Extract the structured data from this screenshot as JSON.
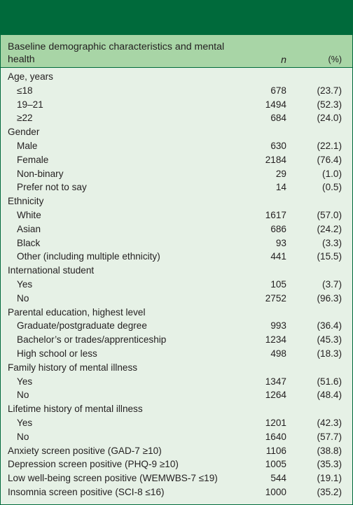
{
  "header": {
    "label": "Baseline demographic characteristics and mental health",
    "n": "n",
    "pct": "(%)"
  },
  "rows": [
    {
      "label": "Age, years",
      "n": "",
      "pct": "",
      "indent": false
    },
    {
      "label": "≤18",
      "n": "678",
      "pct": "(23.7)",
      "indent": true
    },
    {
      "label": "19–21",
      "n": "1494",
      "pct": "(52.3)",
      "indent": true
    },
    {
      "label": "≥22",
      "n": "684",
      "pct": "(24.0)",
      "indent": true
    },
    {
      "label": "Gender",
      "n": "",
      "pct": "",
      "indent": false
    },
    {
      "label": "Male",
      "n": "630",
      "pct": "(22.1)",
      "indent": true
    },
    {
      "label": "Female",
      "n": "2184",
      "pct": "(76.4)",
      "indent": true
    },
    {
      "label": "Non-binary",
      "n": "29",
      "pct": "(1.0)",
      "indent": true
    },
    {
      "label": "Prefer not to say",
      "n": "14",
      "pct": "(0.5)",
      "indent": true
    },
    {
      "label": "Ethnicity",
      "n": "",
      "pct": "",
      "indent": false
    },
    {
      "label": "White",
      "n": "1617",
      "pct": "(57.0)",
      "indent": true
    },
    {
      "label": "Asian",
      "n": "686",
      "pct": "(24.2)",
      "indent": true
    },
    {
      "label": "Black",
      "n": "93",
      "pct": "(3.3)",
      "indent": true
    },
    {
      "label": "Other (including multiple ethnicity)",
      "n": "441",
      "pct": "(15.5)",
      "indent": true
    },
    {
      "label": "International student",
      "n": "",
      "pct": "",
      "indent": false
    },
    {
      "label": "Yes",
      "n": "105",
      "pct": "(3.7)",
      "indent": true
    },
    {
      "label": "No",
      "n": "2752",
      "pct": "(96.3)",
      "indent": true
    },
    {
      "label": "Parental education, highest level",
      "n": "",
      "pct": "",
      "indent": false
    },
    {
      "label": "Graduate/postgraduate degree",
      "n": "993",
      "pct": "(36.4)",
      "indent": true
    },
    {
      "label": "Bachelor’s or trades/apprenticeship",
      "n": "1234",
      "pct": "(45.3)",
      "indent": true
    },
    {
      "label": "High school or less",
      "n": "498",
      "pct": "(18.3)",
      "indent": true
    },
    {
      "label": "Family history of mental illness",
      "n": "",
      "pct": "",
      "indent": false
    },
    {
      "label": "Yes",
      "n": "1347",
      "pct": "(51.6)",
      "indent": true
    },
    {
      "label": "No",
      "n": "1264",
      "pct": "(48.4)",
      "indent": true
    },
    {
      "label": "Lifetime history of mental illness",
      "n": "",
      "pct": "",
      "indent": false
    },
    {
      "label": "Yes",
      "n": "1201",
      "pct": "(42.3)",
      "indent": true
    },
    {
      "label": "No",
      "n": "1640",
      "pct": "(57.7)",
      "indent": true
    },
    {
      "label": "Anxiety screen positive (GAD-7 ≥10)",
      "n": "1106",
      "pct": "(38.8)",
      "indent": false
    },
    {
      "label": "Depression screen positive (PHQ-9 ≥10)",
      "n": "1005",
      "pct": "(35.3)",
      "indent": false
    },
    {
      "label": "Low well-being screen positive (WEMWBS-7 ≤19)",
      "n": "544",
      "pct": "(19.1)",
      "indent": false
    },
    {
      "label": "Insomnia screen positive (SCI-8 ≤16)",
      "n": "1000",
      "pct": "(35.2)",
      "indent": false
    }
  ],
  "colors": {
    "top_bar": "#006a3b",
    "header_bg": "#a8d5a6",
    "body_bg": "#e6f1e6"
  }
}
